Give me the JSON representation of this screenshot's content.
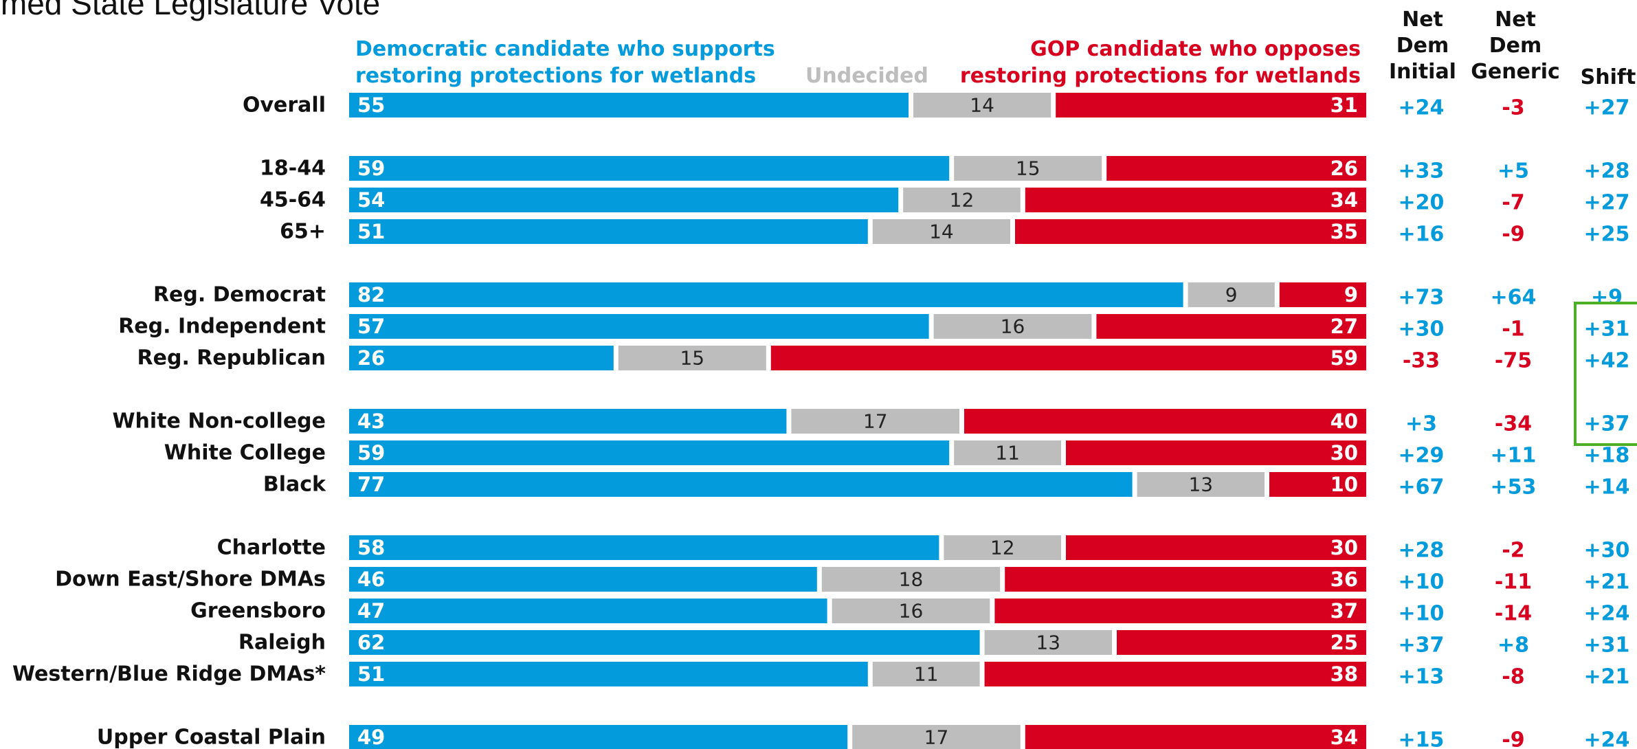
{
  "title": "ormed State Legislature Vote",
  "legend": {
    "dem_line1": "Democratic candidate who supports",
    "dem_line2": "restoring protections for wetlands",
    "undecided": "Undecided",
    "gop_line1": "GOP candidate who opposes",
    "gop_line2": "restoring protections for wetlands"
  },
  "columns": {
    "net_initial_line1": "Net",
    "net_initial_line2": "Dem",
    "net_initial_line3": "Initial",
    "net_generic_line1": "Net",
    "net_generic_line2": "Dem",
    "net_generic_line3": "Generic",
    "shift": "Shift"
  },
  "colors": {
    "dem": "#039BDC",
    "undecided": "#BDBDBD",
    "gop": "#D7001F",
    "highlight": "#4CAF26"
  },
  "chart_data": {
    "type": "bar",
    "orientation": "horizontal-stacked",
    "title": "ormed State Legislature Vote",
    "series_names": [
      "Democratic candidate who supports restoring protections for wetlands",
      "Undecided",
      "GOP candidate who opposes restoring protections for wetlands"
    ],
    "rows": [
      {
        "label": "Overall",
        "dem": 55,
        "und": 14,
        "gop": 31,
        "initial": "+24",
        "generic": "-3",
        "shift": "+27"
      },
      {
        "label": "18-44",
        "dem": 59,
        "und": 15,
        "gop": 26,
        "initial": "+33",
        "generic": "+5",
        "shift": "+28"
      },
      {
        "label": "45-64",
        "dem": 54,
        "und": 12,
        "gop": 34,
        "initial": "+20",
        "generic": "-7",
        "shift": "+27"
      },
      {
        "label": "65+",
        "dem": 51,
        "und": 14,
        "gop": 35,
        "initial": "+16",
        "generic": "-9",
        "shift": "+25"
      },
      {
        "label": "Reg. Democrat",
        "dem": 82,
        "und": 9,
        "gop": 9,
        "initial": "+73",
        "generic": "+64",
        "shift": "+9"
      },
      {
        "label": "Reg. Independent",
        "dem": 57,
        "und": 16,
        "gop": 27,
        "initial": "+30",
        "generic": "-1",
        "shift": "+31"
      },
      {
        "label": "Reg. Republican",
        "dem": 26,
        "und": 15,
        "gop": 59,
        "initial": "-33",
        "generic": "-75",
        "shift": "+42"
      },
      {
        "label": "White Non-college",
        "dem": 43,
        "und": 17,
        "gop": 40,
        "initial": "+3",
        "generic": "-34",
        "shift": "+37"
      },
      {
        "label": "White College",
        "dem": 59,
        "und": 11,
        "gop": 30,
        "initial": "+29",
        "generic": "+11",
        "shift": "+18"
      },
      {
        "label": "Black",
        "dem": 77,
        "und": 13,
        "gop": 10,
        "initial": "+67",
        "generic": "+53",
        "shift": "+14"
      },
      {
        "label": "Charlotte",
        "dem": 58,
        "und": 12,
        "gop": 30,
        "initial": "+28",
        "generic": "-2",
        "shift": "+30"
      },
      {
        "label": "Down East/Shore DMAs",
        "dem": 46,
        "und": 18,
        "gop": 36,
        "initial": "+10",
        "generic": "-11",
        "shift": "+21"
      },
      {
        "label": "Greensboro",
        "dem": 47,
        "und": 16,
        "gop": 37,
        "initial": "+10",
        "generic": "-14",
        "shift": "+24"
      },
      {
        "label": "Raleigh",
        "dem": 62,
        "und": 13,
        "gop": 25,
        "initial": "+37",
        "generic": "+8",
        "shift": "+31"
      },
      {
        "label": "Western/Blue Ridge DMAs*",
        "dem": 51,
        "und": 11,
        "gop": 38,
        "initial": "+13",
        "generic": "-8",
        "shift": "+21"
      },
      {
        "label": "Upper Coastal Plain",
        "dem": 49,
        "und": 17,
        "gop": 34,
        "initial": "+15",
        "generic": "-9",
        "shift": "+24"
      }
    ],
    "highlighted_shift_rows": [
      "Reg. Independent",
      "Reg. Republican",
      "White Non-college"
    ]
  }
}
